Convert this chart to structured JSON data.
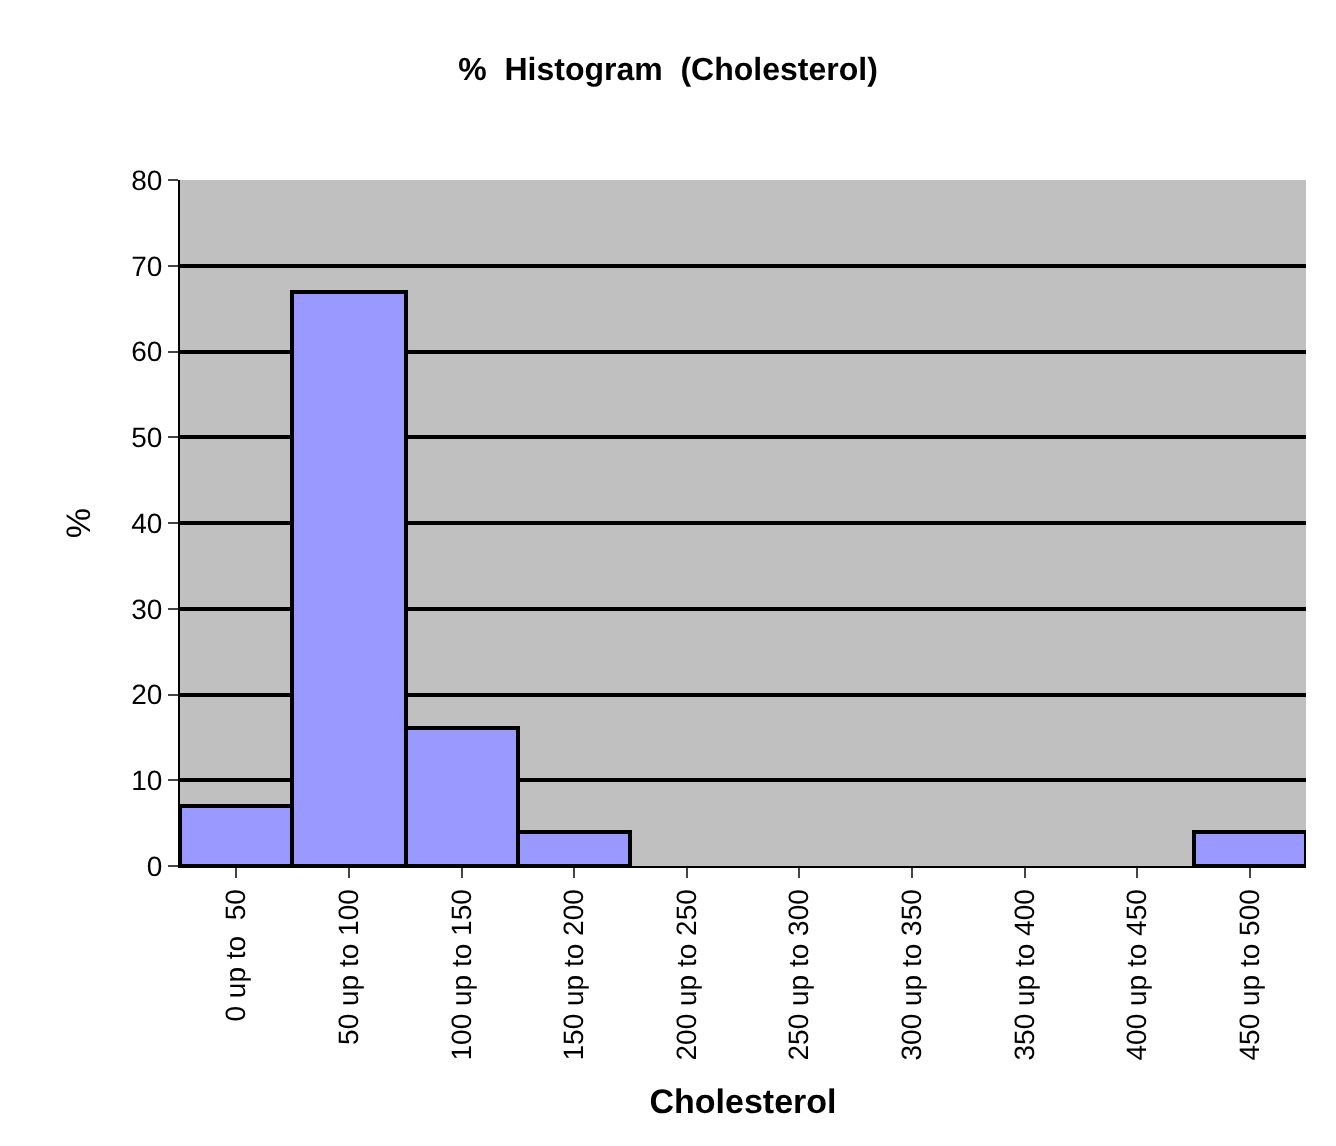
{
  "chart_data": {
    "type": "bar",
    "title": "%  Histogram  (Cholesterol)",
    "xlabel": "Cholesterol",
    "ylabel": "%",
    "categories": [
      "0 up to  50",
      "50 up to 100",
      "100 up to 150",
      "150 up to 200",
      "200 up to 250",
      "250 up to 300",
      "300 up to 350",
      "350 up to 400",
      "400 up to 450",
      "450 up to 500"
    ],
    "values": [
      7,
      67,
      16,
      4,
      0,
      0,
      0,
      0,
      0,
      4
    ],
    "color": "#9999ff",
    "ylim": [
      0,
      80
    ],
    "yticks": [
      0,
      10,
      20,
      30,
      40,
      50,
      60,
      70,
      80
    ],
    "grid": "y"
  }
}
